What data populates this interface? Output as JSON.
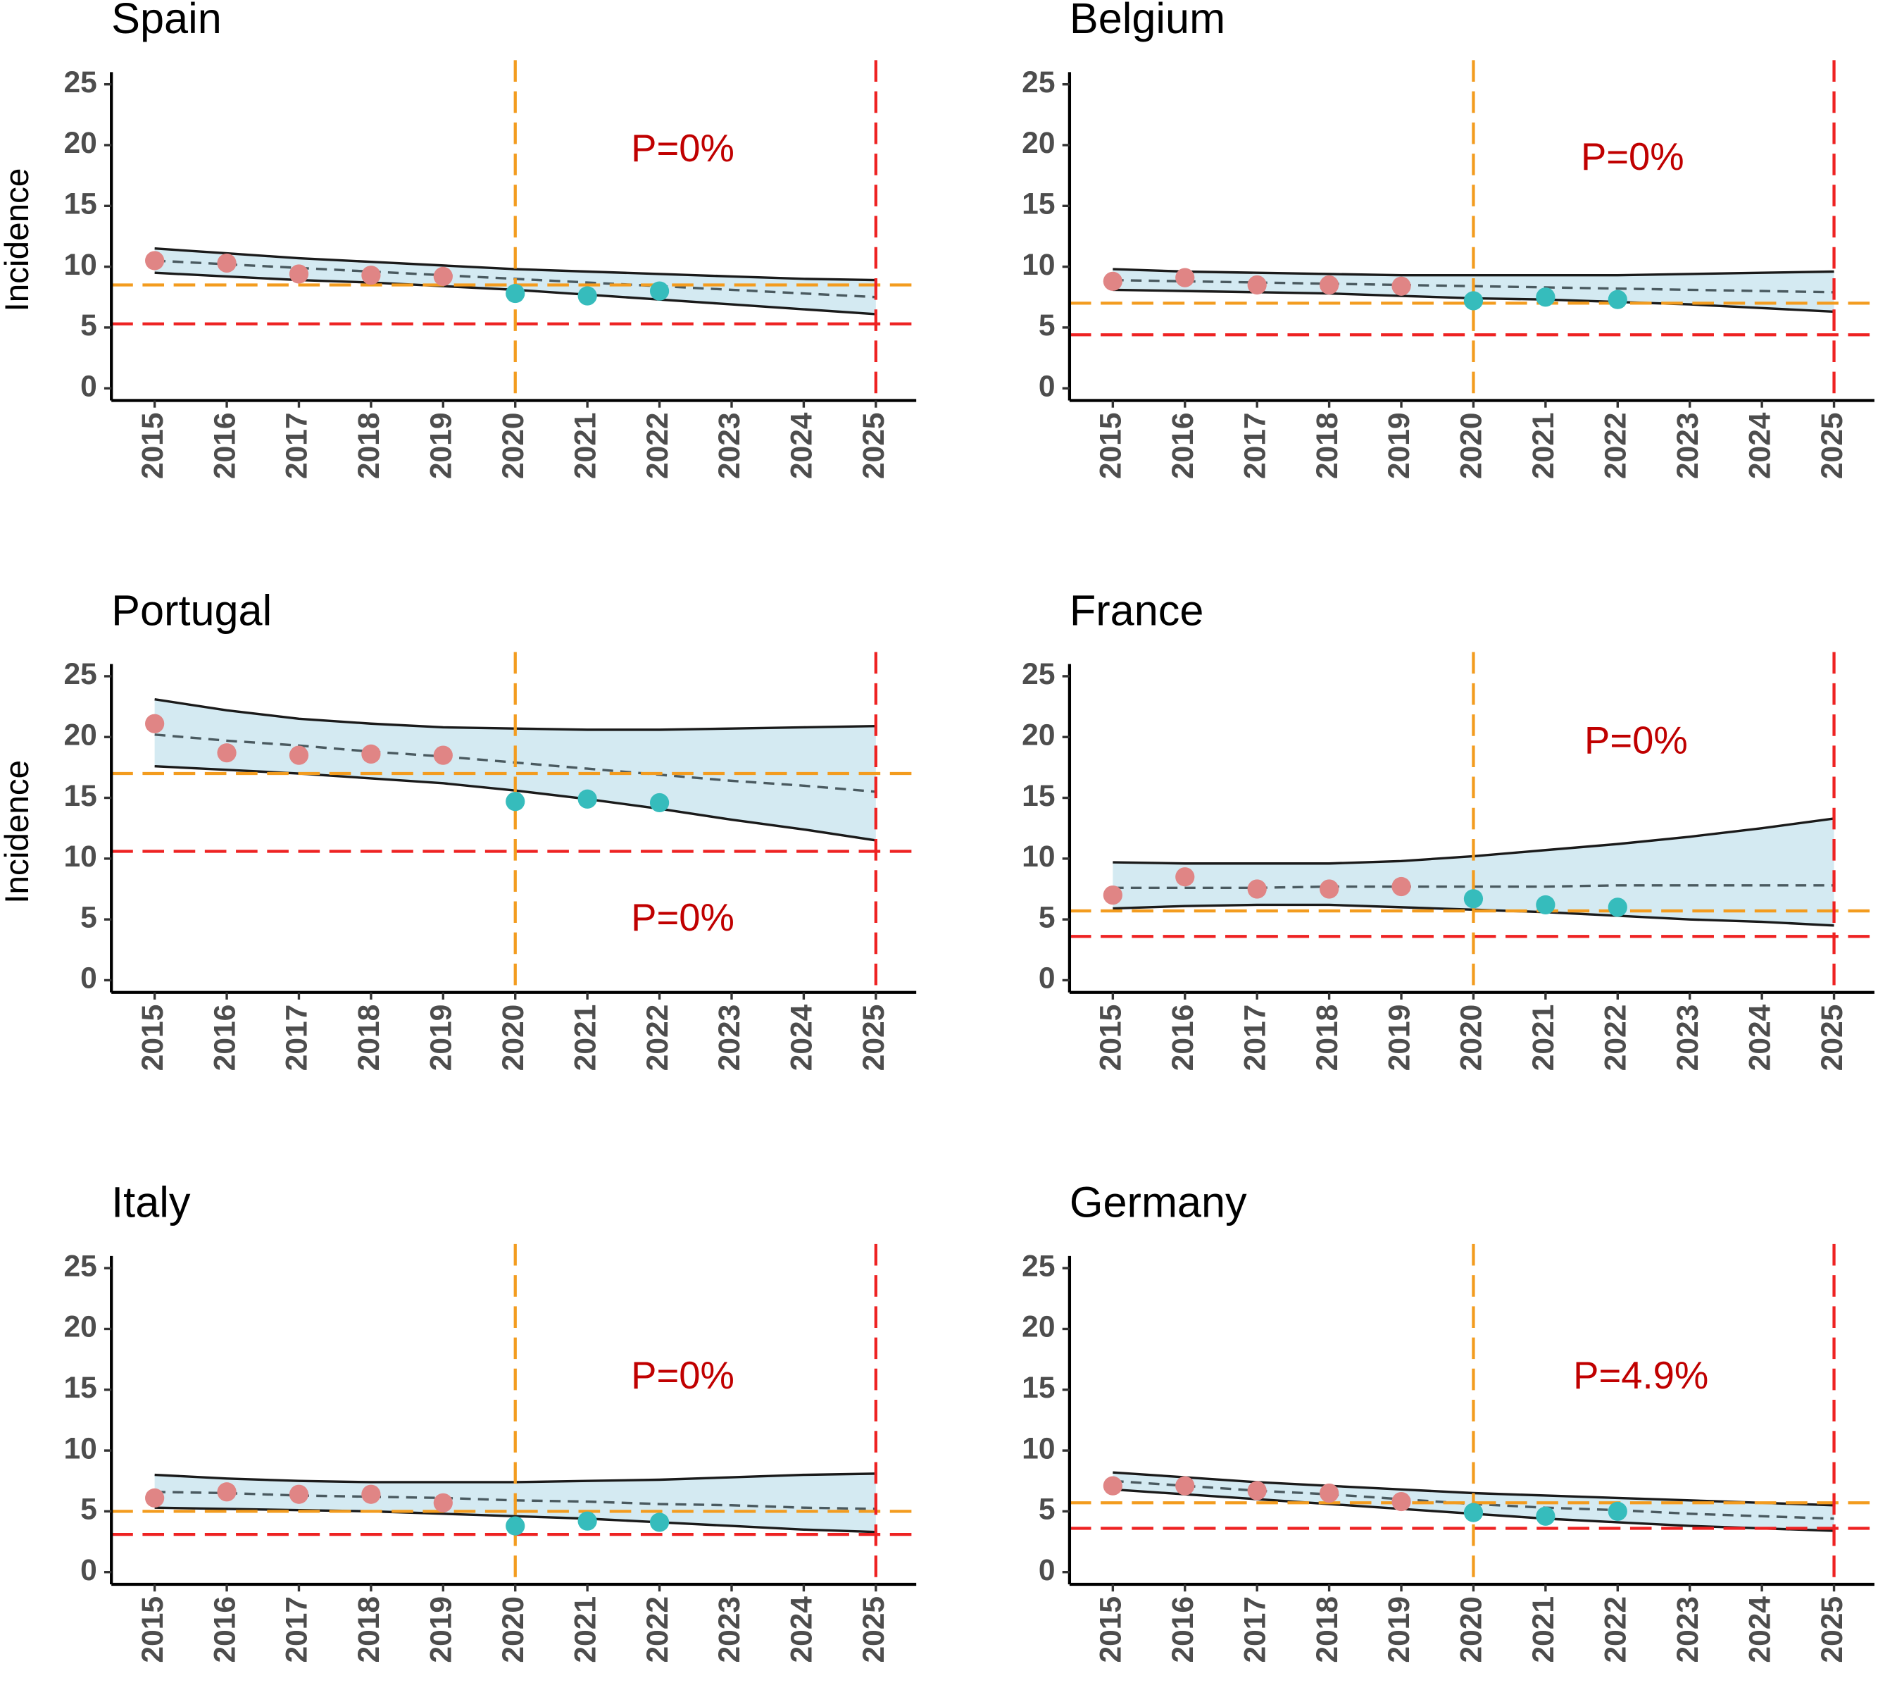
{
  "chart_data": [
    {
      "type": "line",
      "title": "Spain",
      "ylabel": "Incidence",
      "annotation": "P=0%",
      "xlim": [
        2014.4,
        2025.56
      ],
      "xticks": [
        2015,
        2016,
        2017,
        2018,
        2019,
        2020,
        2021,
        2022,
        2023,
        2024,
        2025
      ],
      "ylim": [
        -1,
        26
      ],
      "yticks": [
        0,
        5,
        10,
        15,
        20,
        25
      ],
      "x": [
        2015,
        2016,
        2017,
        2018,
        2019,
        2020,
        2021,
        2022,
        2023,
        2024,
        2025
      ],
      "band_upper": [
        11.5,
        11.1,
        10.7,
        10.4,
        10.1,
        9.8,
        9.6,
        9.4,
        9.2,
        9.0,
        8.9
      ],
      "band_lower": [
        9.5,
        9.2,
        8.9,
        8.7,
        8.4,
        8.1,
        7.7,
        7.3,
        6.9,
        6.5,
        6.1
      ],
      "trend": [
        10.5,
        10.2,
        9.9,
        9.6,
        9.3,
        9.0,
        8.7,
        8.4,
        8.1,
        7.8,
        7.5
      ],
      "band_color": "#d4eaf2",
      "pre_x": [
        2015,
        2016,
        2017,
        2018,
        2019
      ],
      "pre_values": [
        10.5,
        10.3,
        9.4,
        9.3,
        9.2
      ],
      "pre_color": "#e08585",
      "post_x": [
        2020,
        2021,
        2022
      ],
      "post_values": [
        7.8,
        7.6,
        8.0
      ],
      "post_color": "#36bcbc",
      "hlines": [
        {
          "value": 8.5,
          "color": "#f39c1f"
        },
        {
          "value": 5.3,
          "color": "#ee2222"
        }
      ],
      "vlines": [
        {
          "value": 2020,
          "color": "#f39c1f"
        },
        {
          "value": 2025,
          "color": "#ee2222"
        }
      ]
    },
    {
      "type": "line",
      "title": "Belgium",
      "annotation": "P=0%",
      "xlim": [
        2014.4,
        2025.56
      ],
      "xticks": [
        2015,
        2016,
        2017,
        2018,
        2019,
        2020,
        2021,
        2022,
        2023,
        2024,
        2025
      ],
      "ylim": [
        -1,
        26
      ],
      "yticks": [
        0,
        5,
        10,
        15,
        20,
        25
      ],
      "x": [
        2015,
        2016,
        2017,
        2018,
        2019,
        2020,
        2021,
        2022,
        2023,
        2024,
        2025
      ],
      "band_upper": [
        9.8,
        9.6,
        9.5,
        9.4,
        9.3,
        9.3,
        9.3,
        9.3,
        9.4,
        9.5,
        9.6
      ],
      "band_lower": [
        8.1,
        8.0,
        7.9,
        7.8,
        7.6,
        7.4,
        7.3,
        7.1,
        6.9,
        6.6,
        6.3
      ],
      "trend": [
        8.9,
        8.8,
        8.7,
        8.6,
        8.5,
        8.4,
        8.3,
        8.2,
        8.1,
        8.0,
        7.9
      ],
      "band_color": "#d4eaf2",
      "pre_x": [
        2015,
        2016,
        2017,
        2018,
        2019
      ],
      "pre_values": [
        8.8,
        9.1,
        8.5,
        8.5,
        8.4
      ],
      "pre_color": "#e08585",
      "post_x": [
        2020,
        2021,
        2022
      ],
      "post_values": [
        7.2,
        7.5,
        7.3
      ],
      "post_color": "#36bcbc",
      "hlines": [
        {
          "value": 7.0,
          "color": "#f39c1f"
        },
        {
          "value": 4.4,
          "color": "#ee2222"
        }
      ],
      "vlines": [
        {
          "value": 2020,
          "color": "#f39c1f"
        },
        {
          "value": 2025,
          "color": "#ee2222"
        }
      ]
    },
    {
      "type": "line",
      "title": "Portugal",
      "ylabel": "Incidence",
      "annotation": "P=0%",
      "xlim": [
        2014.4,
        2025.56
      ],
      "xticks": [
        2015,
        2016,
        2017,
        2018,
        2019,
        2020,
        2021,
        2022,
        2023,
        2024,
        2025
      ],
      "ylim": [
        -1,
        26
      ],
      "yticks": [
        0,
        5,
        10,
        15,
        20,
        25
      ],
      "x": [
        2015,
        2016,
        2017,
        2018,
        2019,
        2020,
        2021,
        2022,
        2023,
        2024,
        2025
      ],
      "band_upper": [
        23.1,
        22.2,
        21.5,
        21.1,
        20.8,
        20.7,
        20.6,
        20.6,
        20.7,
        20.8,
        20.9
      ],
      "band_lower": [
        17.6,
        17.3,
        17.0,
        16.6,
        16.2,
        15.6,
        14.9,
        14.1,
        13.2,
        12.4,
        11.5
      ],
      "trend": [
        20.2,
        19.7,
        19.3,
        18.8,
        18.4,
        17.9,
        17.4,
        16.9,
        16.4,
        16.0,
        15.5
      ],
      "band_color": "#d4eaf2",
      "pre_x": [
        2015,
        2016,
        2017,
        2018,
        2019
      ],
      "pre_values": [
        21.1,
        18.7,
        18.5,
        18.6,
        18.5
      ],
      "pre_color": "#e08585",
      "post_x": [
        2020,
        2021,
        2022
      ],
      "post_values": [
        14.7,
        14.9,
        14.6
      ],
      "post_color": "#36bcbc",
      "hlines": [
        {
          "value": 17.0,
          "color": "#f39c1f"
        },
        {
          "value": 10.6,
          "color": "#ee2222"
        }
      ],
      "vlines": [
        {
          "value": 2020,
          "color": "#f39c1f"
        },
        {
          "value": 2025,
          "color": "#ee2222"
        }
      ]
    },
    {
      "type": "line",
      "title": "France",
      "annotation": "P=0%",
      "xlim": [
        2014.4,
        2025.56
      ],
      "xticks": [
        2015,
        2016,
        2017,
        2018,
        2019,
        2020,
        2021,
        2022,
        2023,
        2024,
        2025
      ],
      "ylim": [
        -1,
        26
      ],
      "yticks": [
        0,
        5,
        10,
        15,
        20,
        25
      ],
      "x": [
        2015,
        2016,
        2017,
        2018,
        2019,
        2020,
        2021,
        2022,
        2023,
        2024,
        2025
      ],
      "band_upper": [
        9.7,
        9.6,
        9.6,
        9.6,
        9.8,
        10.2,
        10.7,
        11.2,
        11.8,
        12.5,
        13.3
      ],
      "band_lower": [
        5.9,
        6.1,
        6.2,
        6.2,
        6.0,
        5.8,
        5.6,
        5.3,
        5.0,
        4.8,
        4.5
      ],
      "trend": [
        7.6,
        7.6,
        7.6,
        7.7,
        7.7,
        7.7,
        7.7,
        7.8,
        7.8,
        7.8,
        7.8
      ],
      "band_color": "#d4eaf2",
      "pre_x": [
        2015,
        2016,
        2017,
        2018,
        2019
      ],
      "pre_values": [
        7.0,
        8.5,
        7.5,
        7.5,
        7.7
      ],
      "pre_color": "#e08585",
      "post_x": [
        2020,
        2021,
        2022
      ],
      "post_values": [
        6.7,
        6.2,
        6.0
      ],
      "post_color": "#36bcbc",
      "hlines": [
        {
          "value": 5.7,
          "color": "#f39c1f"
        },
        {
          "value": 3.6,
          "color": "#ee2222"
        }
      ],
      "vlines": [
        {
          "value": 2020,
          "color": "#f39c1f"
        },
        {
          "value": 2025,
          "color": "#ee2222"
        }
      ]
    },
    {
      "type": "line",
      "title": "Italy",
      "annotation": "P=0%",
      "xlim": [
        2014.4,
        2025.56
      ],
      "xticks": [
        2015,
        2016,
        2017,
        2018,
        2019,
        2020,
        2021,
        2022,
        2023,
        2024,
        2025
      ],
      "ylim": [
        -1,
        26
      ],
      "yticks": [
        0,
        5,
        10,
        15,
        20,
        25
      ],
      "x": [
        2015,
        2016,
        2017,
        2018,
        2019,
        2020,
        2021,
        2022,
        2023,
        2024,
        2025
      ],
      "band_upper": [
        8.0,
        7.7,
        7.5,
        7.4,
        7.4,
        7.4,
        7.5,
        7.6,
        7.8,
        8.0,
        8.1
      ],
      "band_lower": [
        5.3,
        5.2,
        5.1,
        5.0,
        4.8,
        4.6,
        4.4,
        4.1,
        3.8,
        3.5,
        3.3
      ],
      "trend": [
        6.6,
        6.5,
        6.3,
        6.2,
        6.1,
        5.9,
        5.8,
        5.6,
        5.5,
        5.3,
        5.2
      ],
      "band_color": "#d4eaf2",
      "pre_x": [
        2015,
        2016,
        2017,
        2018,
        2019
      ],
      "pre_values": [
        6.1,
        6.6,
        6.4,
        6.4,
        5.7
      ],
      "pre_color": "#e08585",
      "post_x": [
        2020,
        2021,
        2022
      ],
      "post_values": [
        3.8,
        4.2,
        4.1
      ],
      "post_color": "#36bcbc",
      "hlines": [
        {
          "value": 5.0,
          "color": "#f39c1f"
        },
        {
          "value": 3.1,
          "color": "#ee2222"
        }
      ],
      "vlines": [
        {
          "value": 2020,
          "color": "#f39c1f"
        },
        {
          "value": 2025,
          "color": "#ee2222"
        }
      ]
    },
    {
      "type": "line",
      "title": "Germany",
      "annotation": "P=4.9%",
      "xlim": [
        2014.4,
        2025.56
      ],
      "xticks": [
        2015,
        2016,
        2017,
        2018,
        2019,
        2020,
        2021,
        2022,
        2023,
        2024,
        2025
      ],
      "ylim": [
        -1,
        26
      ],
      "yticks": [
        0,
        5,
        10,
        15,
        20,
        25
      ],
      "x": [
        2015,
        2016,
        2017,
        2018,
        2019,
        2020,
        2021,
        2022,
        2023,
        2024,
        2025
      ],
      "band_upper": [
        8.2,
        7.8,
        7.4,
        7.1,
        6.8,
        6.5,
        6.3,
        6.1,
        5.9,
        5.7,
        5.5
      ],
      "band_lower": [
        6.8,
        6.4,
        6.0,
        5.6,
        5.2,
        4.8,
        4.4,
        4.1,
        3.8,
        3.6,
        3.4
      ],
      "trend": [
        7.5,
        7.1,
        6.7,
        6.4,
        6.0,
        5.6,
        5.3,
        5.1,
        4.8,
        4.6,
        4.4
      ],
      "band_color": "#d4eaf2",
      "pre_x": [
        2015,
        2016,
        2017,
        2018,
        2019
      ],
      "pre_values": [
        7.1,
        7.1,
        6.7,
        6.5,
        5.8
      ],
      "pre_color": "#e08585",
      "post_x": [
        2020,
        2021,
        2022
      ],
      "post_values": [
        4.9,
        4.6,
        5.0
      ],
      "post_color": "#36bcbc",
      "hlines": [
        {
          "value": 5.7,
          "color": "#f39c1f"
        },
        {
          "value": 3.6,
          "color": "#ee2222"
        }
      ],
      "vlines": [
        {
          "value": 2020,
          "color": "#f39c1f"
        },
        {
          "value": 2025,
          "color": "#ee2222"
        }
      ]
    }
  ]
}
